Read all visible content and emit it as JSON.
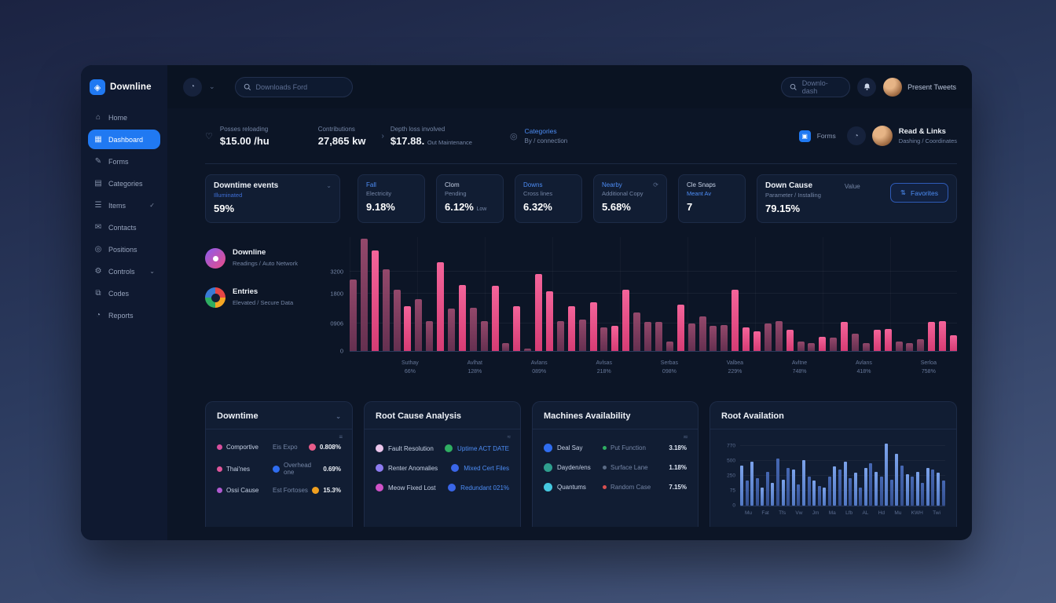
{
  "app": {
    "logo": "Downline"
  },
  "colors": {
    "accent_blue": "#2079f2",
    "link_blue": "#4d8df5",
    "bar_pink_bright": "#ec4f85",
    "bar_pink_dark": "#7e3a5c",
    "bar_blue_light": "#6e97e6",
    "bar_blue_dark": "#3d62ab"
  },
  "sidebar": {
    "items": [
      {
        "label": "Home",
        "icon": "home-icon"
      },
      {
        "label": "Dashboard",
        "icon": "dashboard-icon",
        "active": true
      },
      {
        "label": "Forms",
        "icon": "forms-icon"
      },
      {
        "label": "Categories",
        "icon": "categories-icon"
      },
      {
        "label": "Items",
        "icon": "items-icon",
        "check": "✓"
      },
      {
        "label": "Contacts",
        "icon": "contacts-icon"
      },
      {
        "label": "Positions",
        "icon": "positions-icon"
      },
      {
        "label": "Controls",
        "icon": "controls-icon",
        "chevron": "⌄"
      },
      {
        "label": "Codes",
        "icon": "codes-icon"
      },
      {
        "label": "Reports",
        "icon": "reports-icon"
      }
    ]
  },
  "header": {
    "search_placeholder": "Downloads Ford",
    "mini_search_label": "Downlo-dash",
    "user_name": "Present Tweets"
  },
  "kpis": [
    {
      "label": "Posses reloading",
      "value": "$15.00 /hu"
    },
    {
      "label": "Contributions",
      "value": "27,865 kw"
    },
    {
      "label": "Depth loss involved",
      "value": "$17.88.",
      "suffix": "Out Maintenance"
    },
    {
      "label": "Categories",
      "value": "By / connection"
    }
  ],
  "profile": {
    "forms_label": "Forms",
    "name": "Read & Links",
    "subtitle": "Dashing / Coordinates"
  },
  "stat_cards": [
    {
      "title": "Downtime events",
      "link": "Illuminated",
      "value": "59%"
    },
    {
      "top": "Fall",
      "sub": "Electricity",
      "value": "9.18%"
    },
    {
      "top": "Clom",
      "sub": "Pending",
      "value": "6.12%",
      "note": "Low"
    },
    {
      "top": "Downs",
      "sub": "Cross lines",
      "value": "6.32%"
    },
    {
      "top": "Nearby",
      "sub": "Additional Copy",
      "value": "5.68%"
    },
    {
      "top": "Cle Snaps",
      "sub": "Meant Av",
      "value": "7"
    },
    {
      "title": "Down Cause",
      "sub": "Parameter / Installing",
      "value": "79.15%",
      "side_label": "Value",
      "button_label": "Favorites"
    }
  ],
  "legend": [
    {
      "title": "Downline",
      "sub1": "Readings",
      "sub2": "Auto Network",
      "colors": [
        "#8a5cf0",
        "#ec4d85"
      ]
    },
    {
      "title": "Entries",
      "sub1": "Elevated",
      "sub2": "Secure Data",
      "colors": [
        "#e64646",
        "#f5a623",
        "#2fae62",
        "#3a7bd5"
      ]
    }
  ],
  "chart_data": [
    {
      "id": "downtime-bars",
      "type": "bar",
      "title": "Downline vs Entries downtime events",
      "ylim": [
        0,
        4600
      ],
      "y_ticks": [
        "3200",
        "1800",
        "0906",
        "0"
      ],
      "x_ticks": [
        {
          "line1": "Suthay",
          "line2": "66%"
        },
        {
          "line1": "Avlhat",
          "line2": "128%"
        },
        {
          "line1": "Avlans",
          "line2": "089%"
        },
        {
          "line1": "Avlsas",
          "line2": "218%"
        },
        {
          "line1": "Serbas",
          "line2": "098%"
        },
        {
          "line1": "Valbea",
          "line2": "229%"
        },
        {
          "line1": "Avltne",
          "line2": "748%"
        },
        {
          "line1": "Avlans",
          "line2": "418%"
        },
        {
          "line1": "Serloa",
          "line2": "758%"
        }
      ],
      "values": [
        2880,
        4540,
        4060,
        3300,
        2460,
        1820,
        2080,
        1220,
        3580,
        1700,
        2660,
        1760,
        1220,
        2620,
        320,
        1820,
        100,
        3100,
        2400,
        1220,
        1820,
        1280,
        1980,
        960,
        1020,
        2460,
        1540,
        1180,
        1180,
        380,
        1860,
        1120,
        1380,
        1020,
        1060,
        2460,
        960,
        800,
        1120,
        1220,
        860,
        380,
        320,
        580,
        540,
        1180,
        700,
        320,
        860,
        900,
        380,
        320,
        480,
        1180,
        1220,
        640
      ],
      "tones": "ddbddbddbdbddbdbdbbdbdbdbbddddbddddbbbddbddbdbddbbdddbbb",
      "grid": true,
      "legend_position": "left"
    },
    {
      "id": "root-availation-bars",
      "type": "bar",
      "title": "Root Availation",
      "ylim": [
        0,
        100
      ],
      "y_ticks": [
        "770",
        "500",
        "250",
        "75",
        "0"
      ],
      "x_ticks": [
        "Mu",
        "Fat",
        "Tfs",
        "Vw",
        "Jm",
        "Ma",
        "Lfb",
        "AL",
        "Hd",
        "Mu",
        "KWH",
        "Twi"
      ],
      "values": [
        62,
        38,
        68,
        42,
        28,
        52,
        35,
        72,
        40,
        58,
        55,
        32,
        70,
        45,
        38,
        30,
        28,
        45,
        60,
        55,
        68,
        42,
        50,
        28,
        58,
        65,
        52,
        45,
        95,
        40,
        80,
        62,
        48,
        45,
        52,
        35,
        58,
        55,
        50,
        38
      ],
      "grid": true,
      "legend_position": "none"
    }
  ],
  "bottom": {
    "downtime": {
      "title": "Downtime",
      "rows": [
        {
          "dot": "#d84f9e",
          "label": "Comportive",
          "mid": "Eis Expo",
          "value_icon": "#e85c8a",
          "value": "0.808%"
        },
        {
          "dot": "#e0569b",
          "label": "Thai'nes",
          "mid_icon": "#2f6df0",
          "mid": "Overhead one",
          "value": "0.69%"
        },
        {
          "dot": "#b05ad0",
          "label": "Ossi Cause",
          "mid": "Est Fortoses",
          "value_icon": "#f0a020",
          "value": "15.3%"
        }
      ]
    },
    "root_cause": {
      "title": "Root Cause Analysis",
      "rows": [
        {
          "left_icon": "#ecc6ec",
          "left": "Fault Resolution",
          "right_icon": "#2fae62",
          "right": "Uptime ACT DATE"
        },
        {
          "left_icon": "#8d7bf0",
          "left": "Renter Anomalies",
          "right_icon": "#3a66e8",
          "right": "Mixed Cert Files"
        },
        {
          "left_icon": "#d052c8",
          "left": "Meow Fixed Lost",
          "right_icon": "#3a66e8",
          "right": "Redundant 021%"
        }
      ]
    },
    "machines": {
      "title": "Machines Availability",
      "rows": [
        {
          "icon": "#2f6df0",
          "label": "Deal Say",
          "dot": "#2fae62",
          "mid": "Put Function",
          "value": "3.18%"
        },
        {
          "icon": "#2f9e8e",
          "label": "Dayden/ens",
          "dot": "#5a6a85",
          "mid": "Surface Lane",
          "value": "1.18%"
        },
        {
          "icon": "#45c8e0",
          "label": "Quantums",
          "dot": "#d85050",
          "mid": "Random Case",
          "value": "7.15%"
        }
      ]
    },
    "availation": {
      "title": "Root Availation"
    }
  }
}
